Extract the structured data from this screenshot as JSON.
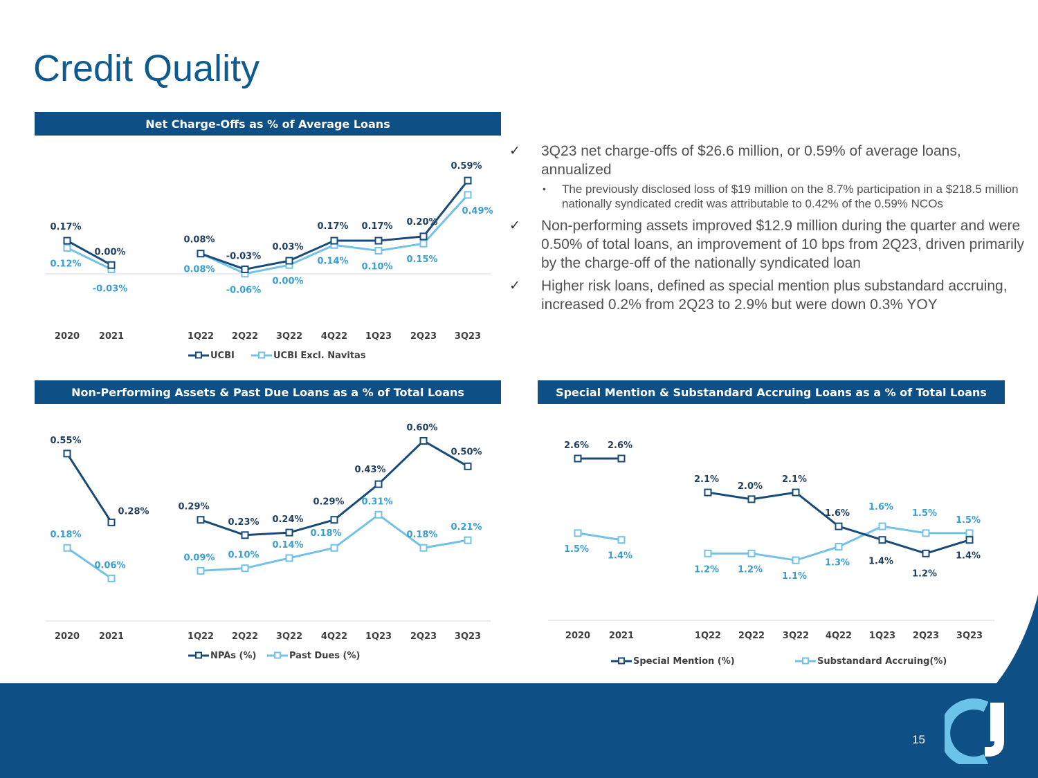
{
  "page": {
    "title": "Credit Quality",
    "page_number": "15",
    "colors": {
      "primary": "#0e4f86",
      "dark_series": "#174a78",
      "light_series": "#72c1e6"
    }
  },
  "bullets": {
    "b1": "3Q23 net charge-offs of $26.6 million, or 0.59% of average loans, annualized",
    "b1_sub": "The previously disclosed loss of $19 million on the 8.7% participation in a $218.5 million nationally syndicated credit was attributable to 0.42% of the 0.59% NCOs",
    "b2": "Non-performing assets improved $12.9 million during the quarter and were 0.50% of total loans, an improvement of 10 bps from 2Q23, driven primarily by the charge-off of the nationally syndicated loan",
    "b3": "Higher risk loans, defined as special mention plus substandard accruing, increased 0.2% from 2Q23 to 2.9% but were down 0.3% YOY",
    "check": "✓",
    "dot": "•"
  },
  "chart_data": [
    {
      "id": "nco",
      "type": "line",
      "title": "Net Charge-Offs as % of Average Loans",
      "categories": [
        "2020",
        "2021",
        "1Q22",
        "2Q22",
        "3Q22",
        "4Q22",
        "1Q23",
        "2Q23",
        "3Q23"
      ],
      "ylim": [
        -0.25,
        0.75
      ],
      "grid": false,
      "legend": "bottom",
      "series": [
        {
          "name": "UCBI",
          "values": [
            0.17,
            0.0,
            0.08,
            -0.03,
            0.03,
            0.17,
            0.17,
            0.2,
            0.59
          ],
          "labels": [
            "0.17%",
            "0.00%",
            "0.08%",
            "-0.03%",
            "0.03%",
            "0.17%",
            "0.17%",
            "0.20%",
            "0.59%"
          ]
        },
        {
          "name": "UCBI Excl. Navitas",
          "values": [
            0.12,
            -0.03,
            0.08,
            -0.06,
            0.0,
            0.14,
            0.1,
            0.15,
            0.49
          ],
          "labels": [
            "0.12%",
            "-0.03%",
            "0.08%",
            "-0.06%",
            "0.00%",
            "0.14%",
            "0.10%",
            "0.15%",
            "0.49%"
          ]
        }
      ]
    },
    {
      "id": "npa",
      "type": "line",
      "title": "Non-Performing Assets & Past Due Loans as a % of Total Loans",
      "categories": [
        "2020",
        "2021",
        "1Q22",
        "2Q22",
        "3Q22",
        "4Q22",
        "1Q23",
        "2Q23",
        "3Q23"
      ],
      "ylim": [
        -0.08,
        0.68
      ],
      "grid": false,
      "legend": "bottom",
      "series": [
        {
          "name": "NPAs (%)",
          "values": [
            0.55,
            0.28,
            0.29,
            0.23,
            0.24,
            0.29,
            0.43,
            0.6,
            0.5
          ],
          "labels": [
            "0.55%",
            "0.28%",
            "0.29%",
            "0.23%",
            "0.24%",
            "0.29%",
            "0.43%",
            "0.60%",
            "0.50%"
          ]
        },
        {
          "name": "Past Dues (%)",
          "values": [
            0.18,
            0.06,
            0.09,
            0.1,
            0.14,
            0.18,
            0.31,
            0.18,
            0.21
          ],
          "labels": [
            "0.18%",
            "0.06%",
            "0.09%",
            "0.10%",
            "0.14%",
            "0.18%",
            "0.31%",
            "0.18%",
            "0.21%"
          ]
        }
      ]
    },
    {
      "id": "sm",
      "type": "line",
      "title": "Special Mention & Substandard Accruing Loans as a % of Total Loans",
      "categories": [
        "2020",
        "2021",
        "1Q22",
        "2Q22",
        "3Q22",
        "4Q22",
        "1Q23",
        "2Q23",
        "3Q23"
      ],
      "ylim": [
        0.0,
        3.1
      ],
      "grid": false,
      "legend": "bottom",
      "series": [
        {
          "name": "Special Mention (%)",
          "values": [
            2.6,
            2.6,
            2.1,
            2.0,
            2.1,
            1.6,
            1.4,
            1.2,
            1.4
          ],
          "labels": [
            "2.6%",
            "2.6%",
            "2.1%",
            "2.0%",
            "2.1%",
            "1.6%",
            "1.4%",
            "1.2%",
            "1.4%"
          ]
        },
        {
          "name": "Substandard Accruing(%)",
          "values": [
            1.5,
            1.4,
            1.2,
            1.2,
            1.1,
            1.3,
            1.6,
            1.5,
            1.5
          ],
          "labels": [
            "1.5%",
            "1.4%",
            "1.2%",
            "1.2%",
            "1.1%",
            "1.3%",
            "1.6%",
            "1.5%",
            "1.5%"
          ]
        }
      ]
    }
  ]
}
